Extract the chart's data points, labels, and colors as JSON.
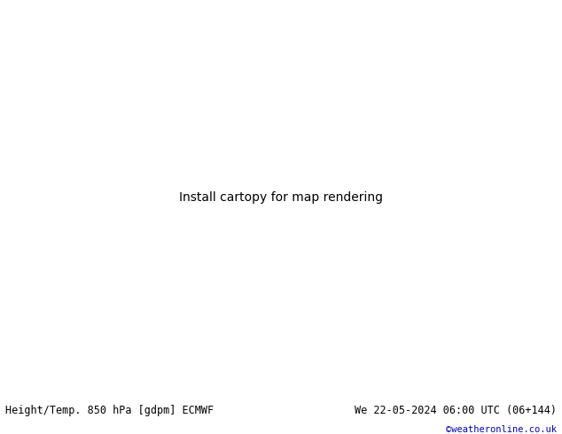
{
  "title_left": "Height/Temp. 850 hPa [gdpm] ECMWF",
  "title_right": "We 22-05-2024 06:00 UTC (06+144)",
  "credit": "©weatheronline.co.uk",
  "fig_width": 6.34,
  "fig_height": 4.9,
  "dpi": 100,
  "land_color": "#c8f0a0",
  "ocean_color": "#d8d8d8",
  "border_color": "#999999",
  "bottom_bar_height": 0.088,
  "bottom_bg": "#f0f0f0",
  "title_fontsize": 8.5,
  "credit_color": "#0000bb",
  "credit_fontsize": 7.5,
  "map_extent": [
    -25,
    65,
    -40,
    42
  ],
  "orange_color": "#FF8800",
  "red_color": "#DD0000",
  "magenta_color": "#EE00BB",
  "black_color": "#000000",
  "teal_color": "#00BBAA",
  "ygreen_color": "#88CC00"
}
